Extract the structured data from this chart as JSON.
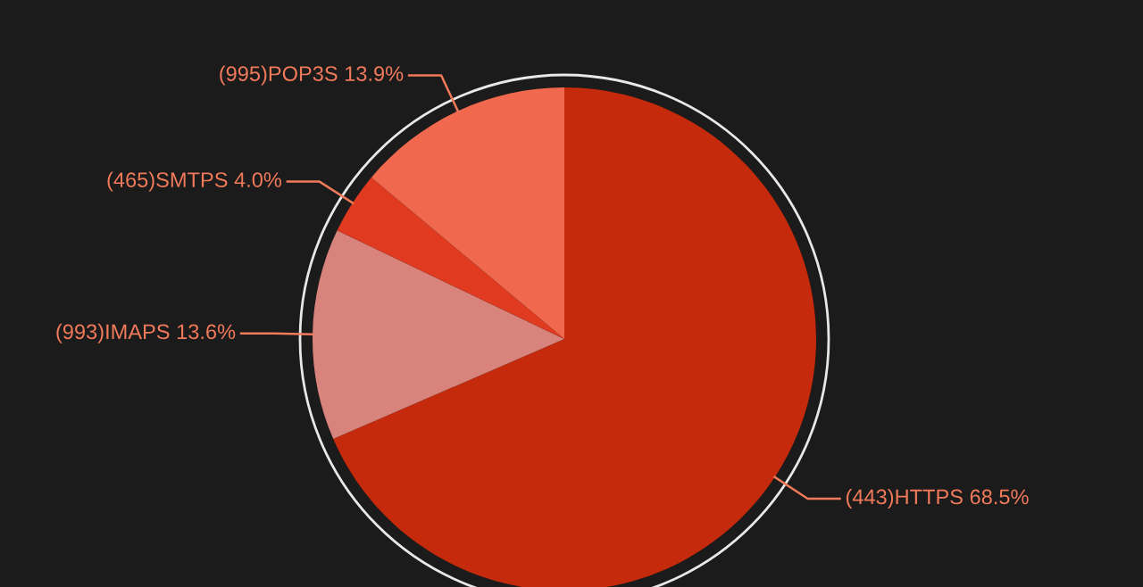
{
  "chart_data": {
    "type": "pie",
    "categories": [
      "(443)HTTPS",
      "(993)IMAPS",
      "(465)SMTPS",
      "(995)POP3S"
    ],
    "values": [
      68.5,
      13.6,
      4.0,
      13.9
    ],
    "value_labels": [
      "68.5%",
      "13.6%",
      "4.0%",
      "13.9%"
    ],
    "colors": [
      "#c52a0d",
      "#d8837b",
      "#e03b20",
      "#f0694f"
    ]
  }
}
